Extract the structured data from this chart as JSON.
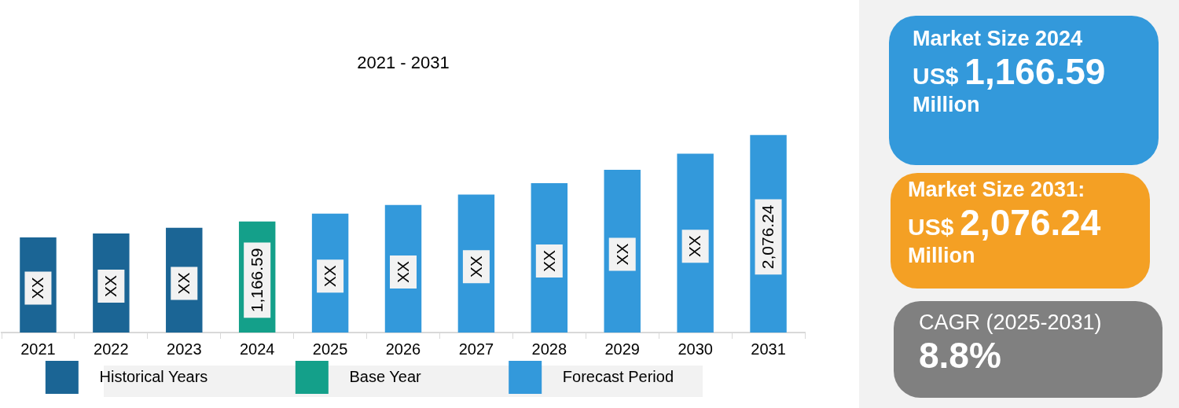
{
  "chart_data": [
    {
      "type": "bar",
      "title": "2021 - 2031",
      "categories": [
        "2021",
        "2022",
        "2023",
        "2024",
        "2025",
        "2026",
        "2027",
        "2028",
        "2029",
        "2030",
        "2031"
      ],
      "tick_labels": "x",
      "stacked": true,
      "legend": "bottom",
      "series": [
        {
          "name": "Historical Years",
          "color": "#1b6595",
          "values": [
            1000,
            1040,
            1100,
            null,
            null,
            null,
            null,
            null,
            null,
            null,
            null
          ],
          "value_labels": [
            "XX",
            "XX",
            "XX",
            null,
            null,
            null,
            null,
            null,
            null,
            null,
            null
          ]
        },
        {
          "name": "Base Year",
          "color": "#14a08a",
          "values": [
            null,
            null,
            null,
            1166.59,
            null,
            null,
            null,
            null,
            null,
            null,
            null
          ],
          "value_labels": [
            null,
            null,
            null,
            "1,166.59",
            null,
            null,
            null,
            null,
            null,
            null,
            null
          ]
        },
        {
          "name": "Forecast Period",
          "color": "#3399db",
          "values": [
            null,
            null,
            null,
            null,
            1250,
            1340,
            1450,
            1570,
            1710,
            1880,
            2076.24
          ],
          "value_labels": [
            null,
            null,
            null,
            null,
            "XX",
            "XX",
            "XX",
            "XX",
            "XX",
            "XX",
            "2,076.24"
          ]
        }
      ]
    },
    {
      "type": "other",
      "annotations": [
        "Market Size 2024",
        "US$ 1,166.59",
        "Million",
        "Market Size 2031:",
        "US$ 2,076.24",
        "Million",
        "CAGR (2025-2031)",
        "8.8%"
      ]
    }
  ]
}
